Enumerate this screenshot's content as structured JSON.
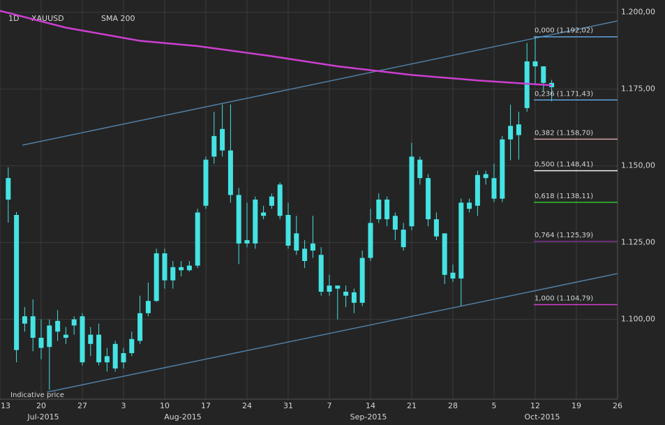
{
  "chart_data": {
    "type": "candlestick",
    "timeframe": "1D",
    "symbol": "XAUUSD",
    "annotation": "Indicative price",
    "color": "#45e3e3",
    "grid": true,
    "ylim": [
      1074,
      1204
    ],
    "yticks": [
      {
        "value": 1100,
        "label": "1.100,00"
      },
      {
        "value": 1125,
        "label": "1.125,00"
      },
      {
        "value": 1150,
        "label": "1.150,00"
      },
      {
        "value": 1175,
        "label": "1.175,00"
      },
      {
        "value": 1200,
        "label": "1.200,00"
      }
    ],
    "xlim": [
      "2015-07-13",
      "2015-10-26"
    ],
    "xticks": [
      {
        "value": "2015-07-13",
        "label": "13"
      },
      {
        "value": "2015-07-20",
        "label": "20"
      },
      {
        "value": "2015-07-27",
        "label": "27"
      },
      {
        "value": "2015-08-03",
        "label": "3"
      },
      {
        "value": "2015-08-10",
        "label": "10"
      },
      {
        "value": "2015-08-17",
        "label": "17"
      },
      {
        "value": "2015-08-24",
        "label": "24"
      },
      {
        "value": "2015-08-31",
        "label": "31"
      },
      {
        "value": "2015-09-07",
        "label": "7"
      },
      {
        "value": "2015-09-14",
        "label": "14"
      },
      {
        "value": "2015-09-21",
        "label": "21"
      },
      {
        "value": "2015-09-28",
        "label": "28"
      },
      {
        "value": "2015-10-05",
        "label": "5"
      },
      {
        "value": "2015-10-12",
        "label": "12"
      },
      {
        "value": "2015-10-19",
        "label": "19"
      },
      {
        "value": "2015-10-26",
        "label": "26"
      }
    ],
    "month_labels": [
      "Jul-2015",
      "Aug-2015",
      "Sep-2015",
      "Oct-2015"
    ],
    "x": [
      "2015-07-14",
      "2015-07-15",
      "2015-07-16",
      "2015-07-17",
      "2015-07-20",
      "2015-07-21",
      "2015-07-22",
      "2015-07-23",
      "2015-07-24",
      "2015-07-27",
      "2015-07-28",
      "2015-07-29",
      "2015-07-30",
      "2015-07-31",
      "2015-08-03",
      "2015-08-04",
      "2015-08-05",
      "2015-08-06",
      "2015-08-07",
      "2015-08-10",
      "2015-08-11",
      "2015-08-12",
      "2015-08-13",
      "2015-08-14",
      "2015-08-17",
      "2015-08-18",
      "2015-08-19",
      "2015-08-20",
      "2015-08-21",
      "2015-08-24",
      "2015-08-25",
      "2015-08-26",
      "2015-08-27",
      "2015-08-28",
      "2015-08-31",
      "2015-09-01",
      "2015-09-02",
      "2015-09-03",
      "2015-09-04",
      "2015-09-07",
      "2015-09-08",
      "2015-09-09",
      "2015-09-10",
      "2015-09-11",
      "2015-09-14",
      "2015-09-15",
      "2015-09-16",
      "2015-09-17",
      "2015-09-18",
      "2015-09-21",
      "2015-09-22",
      "2015-09-23",
      "2015-09-24",
      "2015-09-25",
      "2015-09-28",
      "2015-09-29",
      "2015-09-30",
      "2015-10-01",
      "2015-10-02",
      "2015-10-05",
      "2015-10-06",
      "2015-10-07",
      "2015-10-08",
      "2015-10-09",
      "2015-10-12",
      "2015-10-13",
      "2015-10-14"
    ],
    "open": [
      1146,
      1134,
      1098.6,
      1101,
      1094,
      1098,
      1099.5,
      1095,
      1098,
      1101,
      1092,
      1095,
      1088,
      1084,
      1086,
      1089,
      1093,
      1102,
      1106,
      1121.5,
      1112.7,
      1117,
      1116,
      1117.5,
      1137,
      1153,
      1162,
      1155,
      1140.5,
      1125.8,
      1124.7,
      1134.8,
      1137,
      1143.9,
      1134,
      1128,
      1123,
      1124.7,
      1121,
      1111,
      1111,
      1109,
      1108.8,
      1105.4,
      1120,
      1132.6,
      1139,
      1133.7,
      1129.2,
      1130.3,
      1152,
      1146,
      1132.6,
      1128,
      1115.2,
      1113.3,
      1138,
      1137,
      1147.3,
      1146,
      1139.3,
      1158.6,
      1160,
      1168.8,
      1184,
      1182.4,
      1177
    ],
    "high": [
      1149.5,
      1135,
      1104,
      1106.5,
      1100,
      1100,
      1103,
      1097.5,
      1101,
      1102,
      1097.5,
      1098.6,
      1090.7,
      1093,
      1090.7,
      1096,
      1107.7,
      1112,
      1123,
      1123,
      1119,
      1119,
      1119,
      1136,
      1153,
      1167.6,
      1170,
      1170,
      1142.8,
      1138,
      1140,
      1137,
      1141,
      1144.6,
      1138,
      1133.7,
      1125.8,
      1133.7,
      1123.5,
      1114.5,
      1111,
      1111,
      1110,
      1122.4,
      1136,
      1141,
      1140,
      1134.8,
      1131.4,
      1157.5,
      1153,
      1147.3,
      1134.8,
      1128,
      1117.9,
      1139.3,
      1139.3,
      1148.4,
      1148.4,
      1150.7,
      1159.7,
      1169.9,
      1167.6,
      1190,
      1192,
      1182.4,
      1178
    ],
    "low": [
      1131.5,
      1086,
      1096,
      1089.6,
      1087,
      1077,
      1093,
      1092,
      1095,
      1085,
      1088,
      1085,
      1083,
      1083,
      1084,
      1088,
      1092,
      1101,
      1105.7,
      1110,
      1110,
      1114,
      1115.6,
      1116.7,
      1136,
      1150.7,
      1153,
      1138,
      1118,
      1123.5,
      1123,
      1132.6,
      1136,
      1132.6,
      1123,
      1121,
      1116.7,
      1120,
      1107.7,
      1107.7,
      1100,
      1104,
      1102,
      1104.3,
      1119,
      1131.4,
      1130.3,
      1125.8,
      1122.4,
      1129,
      1143.9,
      1130.3,
      1125.8,
      1111.5,
      1112.2,
      1104.3,
      1134.8,
      1133.7,
      1143.9,
      1138.2,
      1138.2,
      1151.8,
      1152,
      1167.6,
      1176.7,
      1174.4,
      1171
    ],
    "close": [
      1139,
      1090,
      1101,
      1094,
      1090.7,
      1091,
      1096,
      1094,
      1100,
      1086,
      1095,
      1086,
      1086,
      1092,
      1089,
      1093.6,
      1102,
      1106,
      1121.5,
      1112.7,
      1117,
      1116,
      1117.5,
      1134.8,
      1152,
      1159.7,
      1155,
      1140.5,
      1124.7,
      1124.7,
      1139,
      1133.7,
      1140,
      1133.7,
      1124,
      1122.4,
      1119,
      1122.4,
      1109,
      1109,
      1110,
      1107.7,
      1105.4,
      1120,
      1131.4,
      1139,
      1132.6,
      1129.2,
      1123.5,
      1153,
      1146,
      1132.6,
      1127,
      1114.5,
      1113.3,
      1138,
      1136,
      1147,
      1146,
      1139.3,
      1158.6,
      1163,
      1163.5,
      1184,
      1182.4,
      1177,
      1175.6
    ],
    "sma": {
      "name": "SMA 200",
      "color": "#cc3fd0",
      "x": [
        "2015-07-13",
        "2015-07-23",
        "2015-08-05",
        "2015-08-14",
        "2015-08-27",
        "2015-09-08",
        "2015-09-21",
        "2015-10-01",
        "2015-10-14"
      ],
      "values": [
        1200.5,
        1195,
        1190.7,
        1189,
        1185.7,
        1182.4,
        1179.6,
        1177.8,
        1176.2
      ]
    },
    "fib_levels": [
      {
        "value": 1192.02,
        "label": "0,000 (1.192,02)",
        "color": "#5fa3dc"
      },
      {
        "value": 1171.43,
        "label": "0,236 (1.171,43)",
        "color": "#5fa3dc"
      },
      {
        "value": 1158.7,
        "label": "0,382 (1.158,70)",
        "color": "#d4a3a3"
      },
      {
        "value": 1148.41,
        "label": "0,500 (1.148,41)",
        "color": "#f0f0f0"
      },
      {
        "value": 1138.11,
        "label": "0,618 (1.138,11)",
        "color": "#2fc42f"
      },
      {
        "value": 1125.39,
        "label": "0,764 (1.125,39)",
        "color": "#7c2f8c"
      },
      {
        "value": 1104.79,
        "label": "1,000 (1.104,79)",
        "color": "#d040d0"
      }
    ]
  }
}
